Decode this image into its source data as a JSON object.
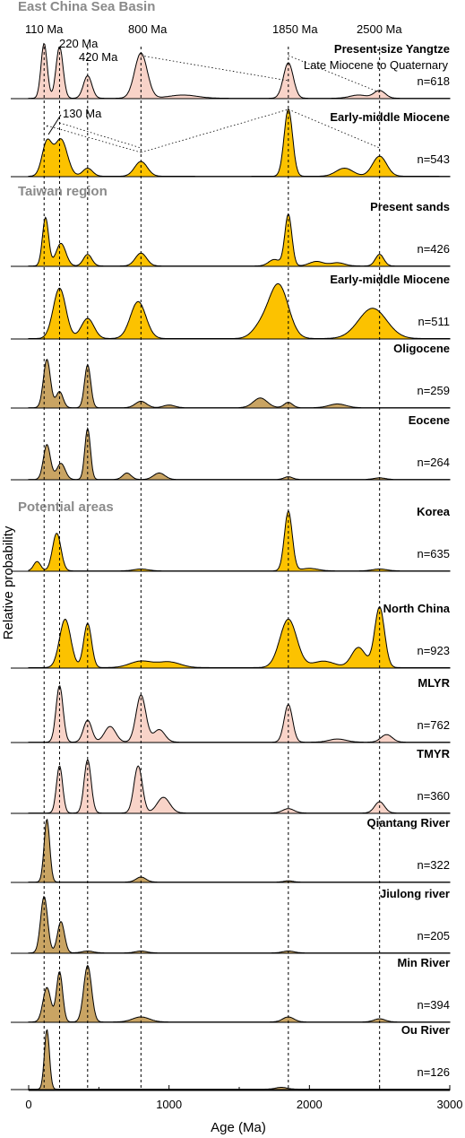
{
  "chart_data": {
    "type": "area",
    "xlabel": "Age (Ma)",
    "ylabel": "Relative probability",
    "xlim": [
      0,
      3000
    ],
    "xticks": [
      0,
      1000,
      2000,
      3000
    ],
    "x_tick_labels": [
      "0",
      "1000",
      "2000",
      "3000"
    ],
    "reference_lines": [
      110,
      220,
      420,
      800,
      1850,
      2500
    ],
    "peak_labels": [
      {
        "text": "110 Ma",
        "x": 110
      },
      {
        "text": "220 Ma",
        "x": 220
      },
      {
        "text": "420 Ma",
        "x": 420
      },
      {
        "text": "800 Ma",
        "x": 800
      },
      {
        "text": "1850 Ma",
        "x": 1850
      },
      {
        "text": "2500 Ma",
        "x": 2500
      },
      {
        "text": "130 Ma",
        "x": 130
      }
    ],
    "colors": {
      "pink": "#f8d3c8",
      "yellow": "#fcc200",
      "tan": "#c9a463"
    },
    "sections": [
      {
        "title": "East China Sea Basin"
      },
      {
        "title": "Taiwan region"
      },
      {
        "title": "Potential areas"
      }
    ],
    "panels": [
      {
        "name": "Present-size  Yangtze",
        "subtitle": "Late Miocene to Quaternary",
        "n": "n=618",
        "color": "pink",
        "peaks": [
          [
            110,
            0.85,
            22
          ],
          [
            220,
            0.8,
            25
          ],
          [
            420,
            0.35,
            30
          ],
          [
            800,
            0.7,
            45
          ],
          [
            1100,
            0.05,
            100
          ],
          [
            1850,
            0.55,
            35
          ],
          [
            2350,
            0.05,
            60
          ],
          [
            2500,
            0.12,
            40
          ]
        ]
      },
      {
        "name": "Early-middle Miocene",
        "n": "n=543",
        "color": "yellow",
        "peaks": [
          [
            130,
            0.5,
            35
          ],
          [
            230,
            0.55,
            45
          ],
          [
            420,
            0.12,
            35
          ],
          [
            800,
            0.22,
            45
          ],
          [
            1850,
            1.0,
            30
          ],
          [
            2250,
            0.12,
            60
          ],
          [
            2500,
            0.3,
            50
          ]
        ]
      },
      {
        "name": "Present sands",
        "n": "n=426",
        "color": "yellow",
        "peaks": [
          [
            120,
            0.75,
            22
          ],
          [
            230,
            0.35,
            35
          ],
          [
            420,
            0.18,
            30
          ],
          [
            800,
            0.2,
            40
          ],
          [
            1850,
            0.8,
            25
          ],
          [
            1750,
            0.1,
            40
          ],
          [
            2050,
            0.07,
            50
          ],
          [
            2200,
            0.05,
            50
          ],
          [
            2500,
            0.18,
            30
          ]
        ]
      },
      {
        "name": "Early-middle Miocene",
        "n": "n=511",
        "color": "yellow",
        "peaks": [
          [
            220,
            0.75,
            45
          ],
          [
            420,
            0.3,
            45
          ],
          [
            780,
            0.55,
            55
          ],
          [
            1780,
            0.8,
            70
          ],
          [
            1650,
            0.15,
            60
          ],
          [
            2450,
            0.45,
            100
          ]
        ]
      },
      {
        "name": "Oligocene",
        "n": "n=259",
        "color": "tan",
        "peaks": [
          [
            130,
            0.9,
            25
          ],
          [
            220,
            0.3,
            25
          ],
          [
            420,
            0.8,
            22
          ],
          [
            800,
            0.12,
            40
          ],
          [
            1000,
            0.05,
            40
          ],
          [
            1650,
            0.18,
            50
          ],
          [
            1850,
            0.1,
            30
          ],
          [
            2200,
            0.07,
            60
          ]
        ]
      },
      {
        "name": "Eocene",
        "n": "n=264",
        "color": "tan",
        "peaks": [
          [
            130,
            0.65,
            25
          ],
          [
            230,
            0.3,
            30
          ],
          [
            420,
            0.95,
            20
          ],
          [
            700,
            0.12,
            30
          ],
          [
            930,
            0.12,
            40
          ],
          [
            1850,
            0.05,
            30
          ],
          [
            2500,
            0.03,
            40
          ]
        ]
      },
      {
        "name": "Korea",
        "n": "n=635",
        "color": "yellow",
        "peaks": [
          [
            60,
            0.15,
            25
          ],
          [
            200,
            0.6,
            30
          ],
          [
            800,
            0.03,
            50
          ],
          [
            1850,
            0.95,
            28
          ],
          [
            2000,
            0.04,
            60
          ],
          [
            2500,
            0.03,
            50
          ]
        ]
      },
      {
        "name": "North China",
        "n": "n=923",
        "color": "yellow",
        "peaks": [
          [
            260,
            0.6,
            40
          ],
          [
            420,
            0.55,
            28
          ],
          [
            800,
            0.08,
            80
          ],
          [
            1000,
            0.07,
            80
          ],
          [
            1850,
            0.6,
            60
          ],
          [
            2100,
            0.08,
            80
          ],
          [
            2350,
            0.25,
            50
          ],
          [
            2500,
            0.75,
            35
          ]
        ]
      },
      {
        "name": "MLYR",
        "n": "n=762",
        "color": "pink",
        "peaks": [
          [
            220,
            0.9,
            25
          ],
          [
            420,
            0.35,
            30
          ],
          [
            580,
            0.25,
            40
          ],
          [
            800,
            0.75,
            35
          ],
          [
            930,
            0.2,
            40
          ],
          [
            1850,
            0.6,
            30
          ],
          [
            2200,
            0.05,
            60
          ],
          [
            2550,
            0.12,
            40
          ]
        ]
      },
      {
        "name": "TMYR",
        "n": "n=360",
        "color": "pink",
        "peaks": [
          [
            220,
            0.75,
            22
          ],
          [
            420,
            0.85,
            25
          ],
          [
            780,
            0.75,
            30
          ],
          [
            960,
            0.25,
            45
          ],
          [
            1850,
            0.07,
            40
          ],
          [
            2500,
            0.18,
            35
          ]
        ]
      },
      {
        "name": "Qiantang River",
        "n": "n=322",
        "color": "tan",
        "peaks": [
          [
            130,
            1.0,
            20
          ],
          [
            800,
            0.08,
            35
          ],
          [
            1850,
            0.02,
            30
          ]
        ]
      },
      {
        "name": "Jiulong river",
        "n": "n=205",
        "color": "tan",
        "peaks": [
          [
            110,
            0.9,
            25
          ],
          [
            230,
            0.5,
            25
          ],
          [
            420,
            0.03,
            40
          ],
          [
            800,
            0.03,
            40
          ],
          [
            1850,
            0.03,
            40
          ]
        ]
      },
      {
        "name": "Min River",
        "n": "n=394",
        "color": "tan",
        "peaks": [
          [
            130,
            0.55,
            28
          ],
          [
            220,
            0.8,
            22
          ],
          [
            420,
            0.9,
            28
          ],
          [
            800,
            0.08,
            60
          ],
          [
            1850,
            0.08,
            40
          ],
          [
            2500,
            0.05,
            40
          ]
        ]
      },
      {
        "name": "Ou River",
        "n": "n=126",
        "color": "tan",
        "peaks": [
          [
            130,
            0.95,
            18
          ],
          [
            1800,
            0.03,
            40
          ]
        ]
      }
    ]
  }
}
